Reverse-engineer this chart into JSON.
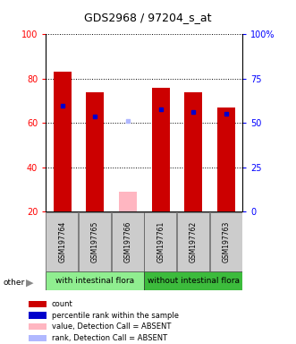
{
  "title": "GDS2968 / 97204_s_at",
  "samples": [
    "GSM197764",
    "GSM197765",
    "GSM197766",
    "GSM197761",
    "GSM197762",
    "GSM197763"
  ],
  "red_bar_heights": [
    83,
    74,
    0,
    76,
    74,
    67
  ],
  "blue_marker_y": [
    68,
    63,
    null,
    66,
    65,
    64
  ],
  "pink_bar_height": [
    0,
    0,
    29,
    0,
    0,
    0
  ],
  "light_blue_marker_y": [
    null,
    null,
    61,
    null,
    null,
    null
  ],
  "ylim_left": [
    20,
    100
  ],
  "ylim_right": [
    0,
    100
  ],
  "yticks_left": [
    20,
    40,
    60,
    80,
    100
  ],
  "yticks_right": [
    0,
    25,
    50,
    75,
    100
  ],
  "ytick_labels_right": [
    "0",
    "25",
    "50",
    "75",
    "100%"
  ],
  "bar_width": 0.55,
  "group_colors": [
    "#90EE90",
    "#3CBB3C"
  ],
  "group_labels": [
    "with intestinal flora",
    "without intestinal flora"
  ],
  "sample_bg": "#cccccc",
  "legend_items": [
    {
      "label": "count",
      "color": "#cc0000"
    },
    {
      "label": "percentile rank within the sample",
      "color": "#0000cc"
    },
    {
      "label": "value, Detection Call = ABSENT",
      "color": "#ffb6c1"
    },
    {
      "label": "rank, Detection Call = ABSENT",
      "color": "#b0b8ff"
    }
  ],
  "title_fontsize": 9,
  "axis_fontsize": 7,
  "sample_fontsize": 5.5,
  "group_fontsize": 6.5,
  "legend_fontsize": 6
}
